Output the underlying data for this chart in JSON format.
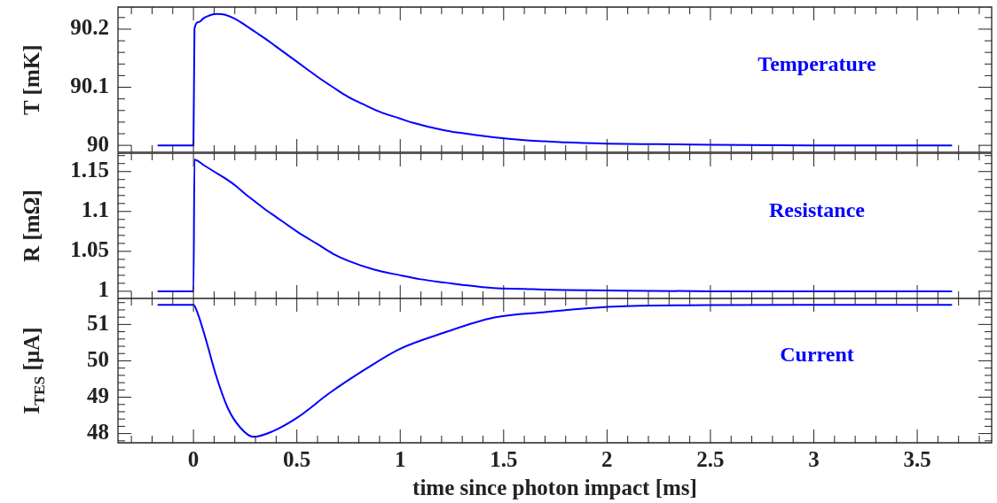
{
  "chart_data": [
    {
      "type": "line",
      "ylabel": "T [mK]",
      "tick_labels": "y",
      "marker": "none",
      "line_style": "solid",
      "legend": false,
      "xlim": [
        -0.365,
        3.86
      ],
      "xticks": [
        {
          "value": -0.3,
          "label": null
        },
        {
          "value": -0.2,
          "label": null
        },
        {
          "value": -0.1,
          "label": null
        },
        0,
        {
          "value": 0.1,
          "label": null
        },
        {
          "value": 0.2,
          "label": null
        },
        {
          "value": 0.3,
          "label": null
        },
        {
          "value": 0.4,
          "label": null
        },
        0.5,
        {
          "value": 0.6,
          "label": null
        },
        {
          "value": 0.7,
          "label": null
        },
        {
          "value": 0.8,
          "label": null
        },
        {
          "value": 0.9,
          "label": null
        },
        1,
        {
          "value": 1.1,
          "label": null
        },
        {
          "value": 1.2,
          "label": null
        },
        {
          "value": 1.3,
          "label": null
        },
        {
          "value": 1.4,
          "label": null
        },
        1.5,
        {
          "value": 1.6,
          "label": null
        },
        {
          "value": 1.7,
          "label": null
        },
        {
          "value": 1.8,
          "label": null
        },
        {
          "value": 1.9,
          "label": null
        },
        2,
        {
          "value": 2.1,
          "label": null
        },
        {
          "value": 2.2,
          "label": null
        },
        {
          "value": 2.3,
          "label": null
        },
        {
          "value": 2.4,
          "label": null
        },
        2.5,
        {
          "value": 2.6,
          "label": null
        },
        {
          "value": 2.7,
          "label": null
        },
        {
          "value": 2.8,
          "label": null
        },
        {
          "value": 2.9,
          "label": null
        },
        3,
        {
          "value": 3.1,
          "label": null
        },
        {
          "value": 3.2,
          "label": null
        },
        {
          "value": 3.3,
          "label": null
        },
        {
          "value": 3.4,
          "label": null
        },
        3.5,
        {
          "value": 3.6,
          "label": null
        },
        {
          "value": 3.7,
          "label": null
        },
        {
          "value": 3.8,
          "label": null
        }
      ],
      "ylim": [
        89.988,
        90.238
      ],
      "yticks": [
        90,
        {
          "value": 90.02,
          "label": null
        },
        {
          "value": 90.04,
          "label": null
        },
        {
          "value": 90.06,
          "label": null
        },
        {
          "value": 90.08,
          "label": null
        },
        90.1,
        {
          "value": 90.12,
          "label": null
        },
        {
          "value": 90.14,
          "label": null
        },
        {
          "value": 90.16,
          "label": null
        },
        {
          "value": 90.18,
          "label": null
        },
        90.2,
        {
          "value": 90.22,
          "label": null
        }
      ],
      "series": [
        {
          "name": "Temperature",
          "color": "#0000ff",
          "x": [
            -0.17,
            0,
            0.005,
            0.025,
            0.05,
            0.08,
            0.115,
            0.15,
            0.2,
            0.25,
            0.3,
            0.35,
            0.4,
            0.45,
            0.5,
            0.55,
            0.6,
            0.675,
            0.75,
            0.825,
            0.9,
            1.0,
            1.06,
            1.21,
            1.3,
            1.45,
            1.6,
            1.7,
            1.8,
            2,
            2.25,
            2.5,
            3,
            3.665
          ],
          "values": [
            90,
            90,
            90.201,
            90.212,
            90.219,
            90.224,
            90.226,
            90.225,
            90.218,
            90.207,
            90.195,
            90.183,
            90.17,
            90.157,
            90.144,
            90.131,
            90.118,
            90.1,
            90.083,
            90.07,
            90.058,
            90.046,
            90.039,
            90.026,
            90.021,
            90.014,
            90.009,
            90.007,
            90.005,
            90.003,
            90.002,
            90.001,
            90,
            90
          ]
        }
      ]
    },
    {
      "type": "line",
      "ylabel": "R [mΩ]",
      "tick_labels": "y",
      "marker": "none",
      "line_style": "solid",
      "legend": false,
      "xlim": [
        -0.365,
        3.86
      ],
      "xticks": [
        {
          "value": -0.3,
          "label": null
        },
        {
          "value": -0.2,
          "label": null
        },
        {
          "value": -0.1,
          "label": null
        },
        0,
        {
          "value": 0.1,
          "label": null
        },
        {
          "value": 0.2,
          "label": null
        },
        {
          "value": 0.3,
          "label": null
        },
        {
          "value": 0.4,
          "label": null
        },
        0.5,
        {
          "value": 0.6,
          "label": null
        },
        {
          "value": 0.7,
          "label": null
        },
        {
          "value": 0.8,
          "label": null
        },
        {
          "value": 0.9,
          "label": null
        },
        1,
        {
          "value": 1.1,
          "label": null
        },
        {
          "value": 1.2,
          "label": null
        },
        {
          "value": 1.3,
          "label": null
        },
        {
          "value": 1.4,
          "label": null
        },
        1.5,
        {
          "value": 1.6,
          "label": null
        },
        {
          "value": 1.7,
          "label": null
        },
        {
          "value": 1.8,
          "label": null
        },
        {
          "value": 1.9,
          "label": null
        },
        2,
        {
          "value": 2.1,
          "label": null
        },
        {
          "value": 2.2,
          "label": null
        },
        {
          "value": 2.3,
          "label": null
        },
        {
          "value": 2.4,
          "label": null
        },
        2.5,
        {
          "value": 2.6,
          "label": null
        },
        {
          "value": 2.7,
          "label": null
        },
        {
          "value": 2.8,
          "label": null
        },
        {
          "value": 2.9,
          "label": null
        },
        3,
        {
          "value": 3.1,
          "label": null
        },
        {
          "value": 3.2,
          "label": null
        },
        {
          "value": 3.3,
          "label": null
        },
        {
          "value": 3.4,
          "label": null
        },
        3.5,
        {
          "value": 3.6,
          "label": null
        },
        {
          "value": 3.7,
          "label": null
        },
        {
          "value": 3.8,
          "label": null
        }
      ],
      "ylim": [
        0.991,
        1.173
      ],
      "yticks": [
        1,
        {
          "value": 1.01,
          "label": null
        },
        {
          "value": 1.02,
          "label": null
        },
        {
          "value": 1.03,
          "label": null
        },
        {
          "value": 1.04,
          "label": null
        },
        1.05,
        {
          "value": 1.06,
          "label": null
        },
        {
          "value": 1.07,
          "label": null
        },
        {
          "value": 1.08,
          "label": null
        },
        {
          "value": 1.09,
          "label": null
        },
        1.1,
        {
          "value": 1.11,
          "label": null
        },
        {
          "value": 1.12,
          "label": null
        },
        {
          "value": 1.13,
          "label": null
        },
        {
          "value": 1.14,
          "label": null
        },
        1.15,
        {
          "value": 1.16,
          "label": null
        },
        {
          "value": 1.17,
          "label": null
        }
      ],
      "series": [
        {
          "name": "Resistance",
          "color": "#0000ff",
          "x": [
            -0.17,
            0,
            0.005,
            0.05,
            0.1,
            0.15,
            0.2,
            0.25,
            0.3,
            0.35,
            0.4,
            0.5,
            0.6,
            0.675,
            0.75,
            0.875,
            1.0,
            1.1,
            1.21,
            1.3,
            1.45,
            1.6,
            1.7,
            2,
            2.5,
            3,
            3.665
          ],
          "values": [
            1,
            1,
            1.165,
            1.158,
            1.15,
            1.142,
            1.133,
            1.122,
            1.112,
            1.102,
            1.093,
            1.075,
            1.059,
            1.047,
            1.038,
            1.027,
            1.02,
            1.015,
            1.011,
            1.008,
            1.004,
            1.003,
            1.002,
            1.001,
            1,
            1,
            1
          ]
        }
      ]
    },
    {
      "type": "line",
      "ylabel": "I$_{TES}$ [μA]",
      "xlabel": "time since photon impact [ms]",
      "marker": "none",
      "line_style": "solid",
      "legend": false,
      "xlim": [
        -0.365,
        3.86
      ],
      "xticks": [
        {
          "value": -0.3,
          "label": null
        },
        {
          "value": -0.2,
          "label": null
        },
        {
          "value": -0.1,
          "label": null
        },
        0,
        {
          "value": 0.1,
          "label": null
        },
        {
          "value": 0.2,
          "label": null
        },
        {
          "value": 0.3,
          "label": null
        },
        {
          "value": 0.4,
          "label": null
        },
        0.5,
        {
          "value": 0.6,
          "label": null
        },
        {
          "value": 0.7,
          "label": null
        },
        {
          "value": 0.8,
          "label": null
        },
        {
          "value": 0.9,
          "label": null
        },
        1,
        {
          "value": 1.1,
          "label": null
        },
        {
          "value": 1.2,
          "label": null
        },
        {
          "value": 1.3,
          "label": null
        },
        {
          "value": 1.4,
          "label": null
        },
        1.5,
        {
          "value": 1.6,
          "label": null
        },
        {
          "value": 1.7,
          "label": null
        },
        {
          "value": 1.8,
          "label": null
        },
        {
          "value": 1.9,
          "label": null
        },
        2,
        {
          "value": 2.1,
          "label": null
        },
        {
          "value": 2.2,
          "label": null
        },
        {
          "value": 2.3,
          "label": null
        },
        {
          "value": 2.4,
          "label": null
        },
        2.5,
        {
          "value": 2.6,
          "label": null
        },
        {
          "value": 2.7,
          "label": null
        },
        {
          "value": 2.8,
          "label": null
        },
        {
          "value": 2.9,
          "label": null
        },
        3,
        {
          "value": 3.1,
          "label": null
        },
        {
          "value": 3.2,
          "label": null
        },
        {
          "value": 3.3,
          "label": null
        },
        {
          "value": 3.4,
          "label": null
        },
        3.5,
        {
          "value": 3.6,
          "label": null
        },
        {
          "value": 3.7,
          "label": null
        },
        {
          "value": 3.8,
          "label": null
        }
      ],
      "ylim": [
        47.747,
        51.715
      ],
      "yticks": [
        {
          "value": 47.8,
          "label": null
        },
        48,
        {
          "value": 48.2,
          "label": null
        },
        {
          "value": 48.4,
          "label": null
        },
        {
          "value": 48.6,
          "label": null
        },
        {
          "value": 48.8,
          "label": null
        },
        49,
        {
          "value": 49.2,
          "label": null
        },
        {
          "value": 49.4,
          "label": null
        },
        {
          "value": 49.6,
          "label": null
        },
        {
          "value": 49.8,
          "label": null
        },
        50,
        {
          "value": 50.2,
          "label": null
        },
        {
          "value": 50.4,
          "label": null
        },
        {
          "value": 50.6,
          "label": null
        },
        {
          "value": 50.8,
          "label": null
        },
        51,
        {
          "value": 51.2,
          "label": null
        },
        {
          "value": 51.4,
          "label": null
        },
        {
          "value": 51.6,
          "label": null
        }
      ],
      "series": [
        {
          "name": "Current",
          "color": "#0000ff",
          "x": [
            -0.17,
            0,
            0.022,
            0.06,
            0.107,
            0.167,
            0.227,
            0.29,
            0.382,
            0.505,
            0.657,
            0.84,
            0.995,
            1.21,
            1.455,
            1.7,
            2.03,
            2.5,
            3,
            3.665
          ],
          "values": [
            51.54,
            51.54,
            51.28,
            50.59,
            49.64,
            48.69,
            48.16,
            47.91,
            48.06,
            48.45,
            49.11,
            49.8,
            50.32,
            50.77,
            51.19,
            51.34,
            51.49,
            51.53,
            51.54,
            51.54
          ]
        }
      ]
    }
  ]
}
